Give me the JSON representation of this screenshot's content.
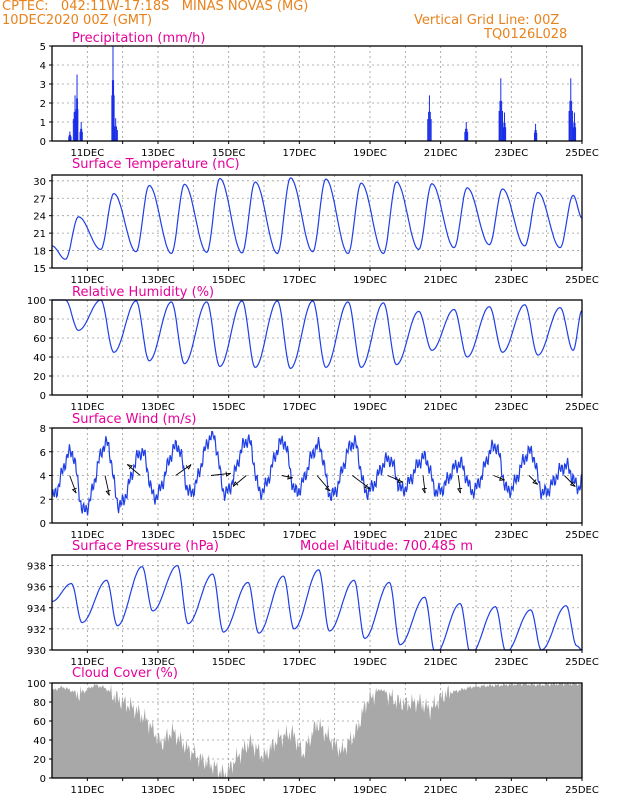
{
  "header": {
    "line1_left": "CPTEC:   042:11W-17:18S   MINAS NOVAS (MG)",
    "line2_left": "10DEC2020 00Z (GMT)",
    "line1_right": "Vertical Grid Line: 00Z",
    "line2_right": "TQ0126L028"
  },
  "colors": {
    "header": "#e8821c",
    "title": "#e8009a",
    "series": "#1f3fe6",
    "bars": "#1a2ee8",
    "cloud": "#a8a8a8",
    "grid": "#9a9a9a"
  },
  "x_tick_labels": [
    "11DEC",
    "13DEC",
    "15DEC",
    "17DEC",
    "19DEC",
    "21DEC",
    "23DEC",
    "25DEC"
  ],
  "chart_data": [
    {
      "type": "bar",
      "title": "Precipitation (mm/h)",
      "yticks": [
        "0",
        "1",
        "2",
        "3",
        "4",
        "5"
      ],
      "ylim": [
        0,
        5
      ],
      "events": [
        {
          "day": 10.5,
          "value": 0.5,
          "width": 0.08
        },
        {
          "day": 10.65,
          "value": 2.4,
          "width": 0.12
        },
        {
          "day": 10.7,
          "value": 3.5,
          "width": 0.06
        },
        {
          "day": 10.82,
          "value": 1.0,
          "width": 0.08
        },
        {
          "day": 11.72,
          "value": 5.0,
          "width": 0.08
        },
        {
          "day": 11.8,
          "value": 1.2,
          "width": 0.12
        },
        {
          "day": 20.68,
          "value": 2.4,
          "width": 0.12
        },
        {
          "day": 21.72,
          "value": 1.0,
          "width": 0.1
        },
        {
          "day": 22.7,
          "value": 3.3,
          "width": 0.12
        },
        {
          "day": 22.8,
          "value": 1.5,
          "width": 0.08
        },
        {
          "day": 23.68,
          "value": 0.9,
          "width": 0.08
        },
        {
          "day": 24.68,
          "value": 3.3,
          "width": 0.12
        },
        {
          "day": 24.78,
          "value": 1.5,
          "width": 0.08
        }
      ]
    },
    {
      "type": "line",
      "title": "Surface Temperature (nC)",
      "yticks": [
        "15",
        "18",
        "21",
        "24",
        "27",
        "30"
      ],
      "ylim": [
        15,
        31
      ],
      "daily_max": [
        23.8,
        27.8,
        29.2,
        29.4,
        30.4,
        29.8,
        30.5,
        30.3,
        29.6,
        29.8,
        29.5,
        28.8,
        28.6,
        28.0,
        27.5
      ],
      "daily_min": [
        16.5,
        18.2,
        17.8,
        17.5,
        17.7,
        17.6,
        17.5,
        17.8,
        17.5,
        17.5,
        18.2,
        18.5,
        19.0,
        18.8,
        18.5
      ],
      "start": 18.8,
      "end": 23.6
    },
    {
      "type": "line",
      "title": "Relative Humidity (%)",
      "yticks": [
        "0",
        "20",
        "40",
        "60",
        "80",
        "100"
      ],
      "ylim": [
        0,
        100
      ],
      "daily_max": [
        100,
        100,
        99,
        98,
        98,
        99,
        99,
        99,
        98,
        97,
        88,
        90,
        93,
        95,
        92
      ],
      "daily_min": [
        68,
        45,
        36,
        33,
        30,
        29,
        28,
        29,
        29,
        32,
        47,
        40,
        45,
        42,
        47
      ],
      "start": 100,
      "end": 89
    },
    {
      "type": "line",
      "title": "Surface Wind (m/s)",
      "yticks": [
        "0",
        "2",
        "4",
        "6",
        "8"
      ],
      "ylim": [
        0,
        8
      ],
      "speed_peaks": [
        6.0,
        6.7,
        6.0,
        6.5,
        7.4,
        7.0,
        6.9,
        6.5,
        6.8,
        5.4,
        5.5,
        5.0,
        6.5,
        6.0,
        4.8
      ],
      "speed_lows": [
        1.0,
        1.5,
        2.2,
        2.5,
        2.5,
        2.6,
        2.6,
        2.3,
        2.6,
        2.8,
        2.6,
        2.7,
        2.7,
        2.5,
        3.0
      ],
      "start": 2.2,
      "end": 3.6,
      "vector_days": [
        10.5,
        11.5,
        12.5,
        13.5,
        14.5,
        15.5,
        16.5,
        17.5,
        18.5,
        19.5,
        20.5,
        21.5,
        22.5,
        23.5,
        24.5
      ],
      "vector_u": [
        0.3,
        0.2,
        -0.6,
        0.7,
        0.9,
        -0.6,
        0.5,
        0.6,
        0.8,
        0.7,
        0.1,
        0.1,
        0.5,
        0.4,
        0.5
      ],
      "vector_v": [
        -0.8,
        -0.9,
        0.5,
        0.5,
        0.1,
        -0.5,
        -0.1,
        -0.7,
        -0.6,
        -0.3,
        -0.8,
        -0.8,
        -0.2,
        -0.4,
        -0.5
      ]
    },
    {
      "type": "line",
      "title": "Surface Pressure (hPa)",
      "subtitle": "Model Altitude: 700.485 m",
      "yticks": [
        "930",
        "932",
        "934",
        "936",
        "938"
      ],
      "ylim": [
        930,
        939
      ],
      "daily_max": [
        936.3,
        936.6,
        937.9,
        938.0,
        937.2,
        936.4,
        937.0,
        937.6,
        936.6,
        936.4,
        935.0,
        934.4,
        934.1,
        933.8,
        934.2
      ],
      "daily_min": [
        932.6,
        932.3,
        933.7,
        932.5,
        931.7,
        931.6,
        932.0,
        931.8,
        931.1,
        930.5,
        929.6,
        929.6,
        929.8,
        930.0,
        930.4
      ],
      "start": 934.6,
      "end": 930.0
    },
    {
      "type": "area",
      "title": "Cloud Cover (%)",
      "yticks": [
        "0",
        "20",
        "40",
        "60",
        "80",
        "100"
      ],
      "ylim": [
        0,
        100
      ],
      "anchors": [
        [
          10.0,
          92
        ],
        [
          10.3,
          96
        ],
        [
          10.8,
          88
        ],
        [
          11.2,
          98
        ],
        [
          11.5,
          95
        ],
        [
          11.9,
          82
        ],
        [
          12.3,
          74
        ],
        [
          12.7,
          60
        ],
        [
          13.1,
          36
        ],
        [
          13.4,
          50
        ],
        [
          13.8,
          32
        ],
        [
          14.2,
          20
        ],
        [
          14.6,
          12
        ],
        [
          14.9,
          3
        ],
        [
          15.2,
          20
        ],
        [
          15.6,
          38
        ],
        [
          16.0,
          22
        ],
        [
          16.4,
          42
        ],
        [
          16.8,
          48
        ],
        [
          17.1,
          25
        ],
        [
          17.5,
          58
        ],
        [
          17.9,
          40
        ],
        [
          18.2,
          28
        ],
        [
          18.6,
          48
        ],
        [
          18.9,
          80
        ],
        [
          19.3,
          94
        ],
        [
          19.7,
          82
        ],
        [
          20.0,
          78
        ],
        [
          20.4,
          80
        ],
        [
          20.7,
          72
        ],
        [
          21.1,
          88
        ],
        [
          21.5,
          92
        ],
        [
          21.9,
          96
        ],
        [
          22.3,
          97
        ],
        [
          22.8,
          98
        ],
        [
          23.3,
          99
        ],
        [
          23.8,
          98
        ],
        [
          24.3,
          99
        ],
        [
          25.0,
          99
        ]
      ]
    }
  ]
}
